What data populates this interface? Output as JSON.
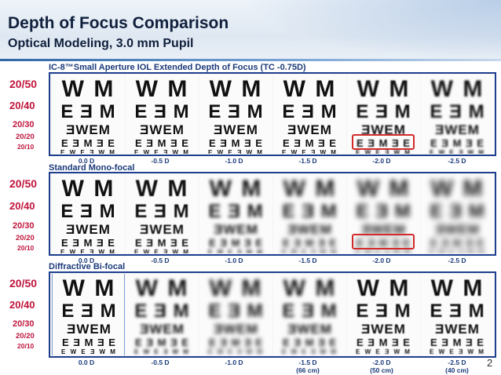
{
  "slide": {
    "title": "Depth of Focus Comparison",
    "subtitle": "Optical Modeling, 3.0 mm Pupil",
    "page_number": "2"
  },
  "acuity_labels": [
    "20/50",
    "20/40",
    "20/30",
    "20/20",
    "20/10"
  ],
  "chart_letters": [
    "W M",
    "E Ǝ M",
    "ƎWEM",
    "E Ǝ M Ǝ E",
    "E W E Ǝ W M"
  ],
  "sections": [
    {
      "title": "IC-8™Small Aperture IOL Extended Depth of Focus (TC -0.75D)",
      "blur_levels": [
        0,
        0.1,
        0.2,
        0.35,
        0.9,
        1.2
      ],
      "highlight_panel": 4
    },
    {
      "title": "Standard Mono-focal",
      "blur_levels": [
        0.1,
        0.4,
        2.2,
        2.8,
        3.4,
        3.8
      ],
      "highlight_panel": 4
    },
    {
      "title": "Diffractive Bi-focal",
      "blur_levels": [
        0.1,
        1.8,
        2.6,
        2.4,
        0.6,
        0.4
      ],
      "highlight_panel": -1
    }
  ],
  "diopters": [
    "0.0 D",
    "-0.5 D",
    "-1.0 D",
    "-1.5 D",
    "-2.0 D",
    "-2.5 D"
  ],
  "distances": [
    "",
    "",
    "",
    "(66 cm)",
    "(50 cm)",
    "(40 cm)"
  ],
  "colors": {
    "title": "#10203c",
    "section_title": "#1a3a7a",
    "acuity": "#c0143c",
    "frame": "#1e3f8f",
    "highlight": "#d22a2a"
  }
}
